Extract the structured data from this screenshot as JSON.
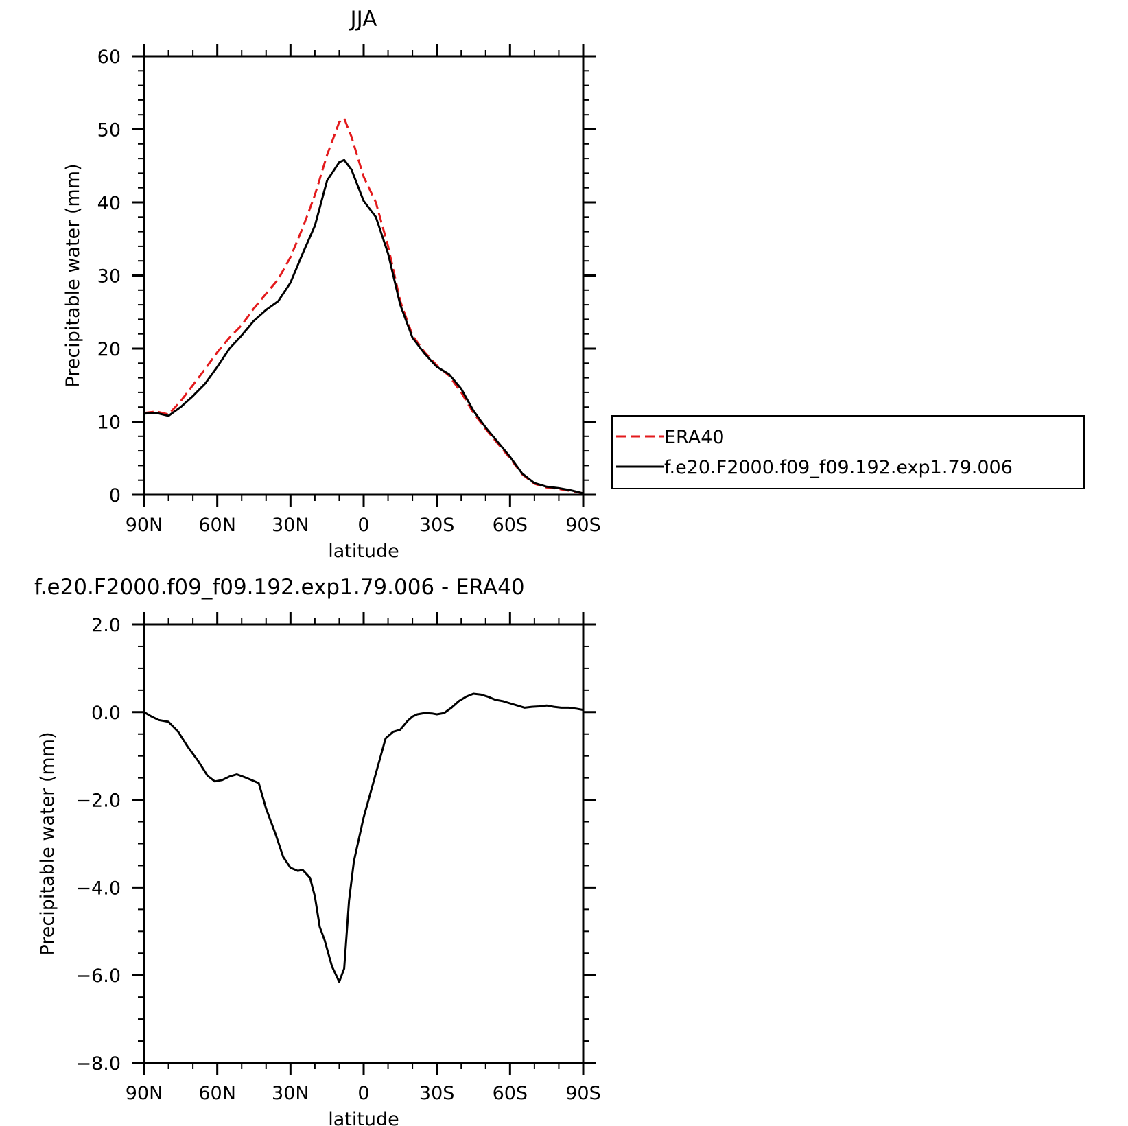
{
  "chart_data": [
    {
      "type": "line",
      "title": "JJA",
      "xlabel": "latitude",
      "ylabel": "Precipitable water (mm)",
      "xlim": [
        90,
        -90
      ],
      "ylim": [
        0,
        60
      ],
      "x_ticks": [
        90,
        60,
        30,
        0,
        -30,
        -60,
        -90
      ],
      "x_tick_labels": [
        "90N",
        "60N",
        "30N",
        "0",
        "30S",
        "60S",
        "90S"
      ],
      "y_ticks": [
        0,
        10,
        20,
        30,
        40,
        50,
        60
      ],
      "y_tick_labels": [
        "0",
        "10",
        "20",
        "30",
        "40",
        "50",
        "60"
      ],
      "legend_position": "right",
      "series": [
        {
          "name": "ERA40",
          "color": "#e31a1c",
          "dash": "dashed",
          "x": [
            90,
            85,
            80,
            75,
            70,
            65,
            60,
            55,
            50,
            45,
            40,
            35,
            30,
            25,
            20,
            15,
            10,
            8,
            5,
            0,
            -5,
            -10,
            -15,
            -20,
            -25,
            -30,
            -35,
            -40,
            -45,
            -50,
            -55,
            -60,
            -65,
            -70,
            -75,
            -80,
            -85,
            -90
          ],
          "values": [
            11.2,
            11.4,
            11.0,
            12.8,
            15.0,
            17.2,
            19.5,
            21.5,
            23.2,
            25.5,
            27.5,
            29.5,
            32.5,
            36.5,
            41.0,
            46.5,
            51.0,
            51.5,
            49.0,
            43.5,
            40.0,
            34.0,
            26.5,
            21.8,
            19.5,
            17.7,
            16.3,
            14.0,
            11.2,
            9.0,
            7.0,
            5.0,
            2.8,
            1.5,
            1.0,
            0.8,
            0.5,
            0.2
          ]
        },
        {
          "name": "f.e20.F2000.f09_f09.192.exp1.79.006",
          "color": "#000000",
          "dash": "solid",
          "x": [
            90,
            85,
            80,
            75,
            70,
            65,
            60,
            55,
            50,
            45,
            40,
            35,
            30,
            25,
            20,
            15,
            10,
            8,
            5,
            0,
            -5,
            -10,
            -15,
            -20,
            -25,
            -30,
            -35,
            -40,
            -45,
            -50,
            -55,
            -60,
            -65,
            -70,
            -75,
            -80,
            -85,
            -90
          ],
          "values": [
            11.1,
            11.2,
            10.8,
            12.0,
            13.5,
            15.2,
            17.5,
            20.0,
            21.8,
            23.8,
            25.3,
            26.5,
            29.0,
            33.0,
            36.8,
            43.0,
            45.5,
            45.8,
            44.5,
            40.2,
            38.0,
            33.0,
            26.0,
            21.5,
            19.3,
            17.5,
            16.5,
            14.5,
            11.5,
            9.2,
            7.2,
            5.2,
            2.9,
            1.6,
            1.1,
            0.9,
            0.6,
            0.2
          ]
        }
      ]
    },
    {
      "type": "line",
      "title": "f.e20.F2000.f09_f09.192.exp1.79.006 - ERA40",
      "xlabel": "latitude",
      "ylabel": "Precipitable water (mm)",
      "xlim": [
        90,
        -90
      ],
      "ylim": [
        -8.0,
        2.0
      ],
      "x_ticks": [
        90,
        60,
        30,
        0,
        -30,
        -60,
        -90
      ],
      "x_tick_labels": [
        "90N",
        "60N",
        "30N",
        "0",
        "30S",
        "60S",
        "90S"
      ],
      "y_ticks": [
        -8.0,
        -6.0,
        -4.0,
        -2.0,
        0.0,
        2.0
      ],
      "y_tick_labels": [
        "−8.0",
        "−6.0",
        "−4.0",
        "−2.0",
        "0.0",
        "2.0"
      ],
      "series": [
        {
          "color": "#000000",
          "dash": "solid",
          "x": [
            90,
            87,
            84,
            80,
            76,
            72,
            68,
            64,
            61,
            58,
            55,
            52,
            49,
            46,
            43,
            40,
            36,
            33,
            30,
            27,
            25,
            22,
            20,
            18,
            16,
            13,
            10,
            8,
            6,
            4,
            2,
            0,
            -3,
            -6,
            -9,
            -12,
            -15,
            -18,
            -20,
            -22,
            -25,
            -28,
            -30,
            -33,
            -36,
            -39,
            -42,
            -45,
            -48,
            -51,
            -54,
            -57,
            -60,
            -63,
            -66,
            -69,
            -72,
            -75,
            -78,
            -81,
            -84,
            -87,
            -90
          ],
          "values": [
            0.0,
            -0.1,
            -0.18,
            -0.22,
            -0.45,
            -0.8,
            -1.1,
            -1.45,
            -1.58,
            -1.55,
            -1.47,
            -1.42,
            -1.48,
            -1.55,
            -1.62,
            -2.2,
            -2.8,
            -3.3,
            -3.55,
            -3.62,
            -3.6,
            -3.78,
            -4.2,
            -4.9,
            -5.2,
            -5.8,
            -6.15,
            -5.85,
            -4.3,
            -3.4,
            -2.9,
            -2.4,
            -1.8,
            -1.2,
            -0.6,
            -0.45,
            -0.4,
            -0.2,
            -0.1,
            -0.05,
            -0.02,
            -0.03,
            -0.05,
            -0.02,
            0.1,
            0.25,
            0.35,
            0.42,
            0.4,
            0.35,
            0.28,
            0.25,
            0.2,
            0.15,
            0.1,
            0.12,
            0.13,
            0.15,
            0.12,
            0.1,
            0.1,
            0.08,
            0.05
          ]
        }
      ]
    }
  ]
}
